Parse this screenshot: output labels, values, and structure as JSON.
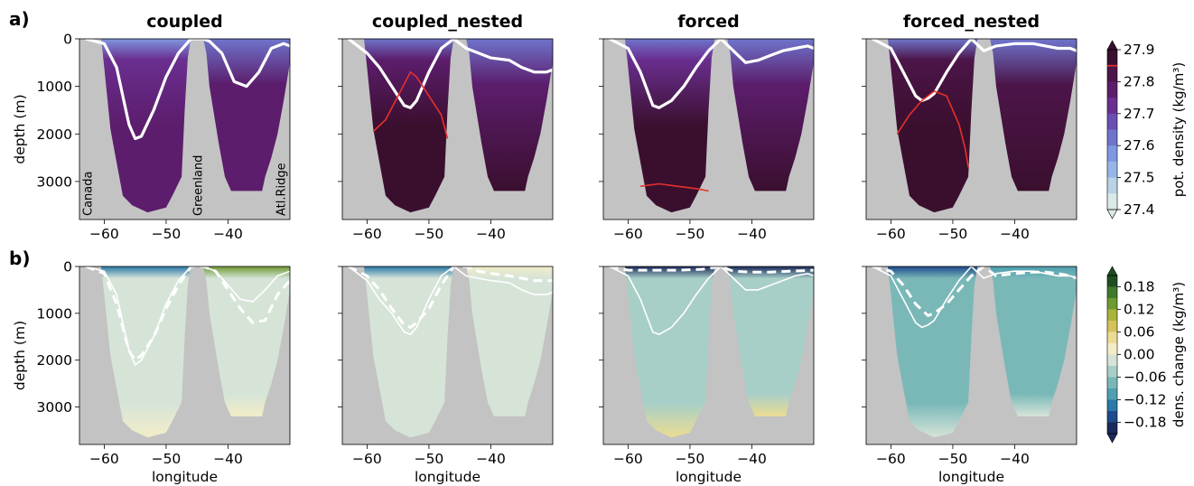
{
  "panel_labels": [
    "a)",
    "b)"
  ],
  "chart_data": [
    {
      "type": "heatmap",
      "row": "a",
      "titles": [
        "coupled",
        "coupled_nested",
        "forced",
        "forced_nested"
      ],
      "xlabel": "",
      "ylabel": "depth (m)",
      "xlim": [
        -64,
        -30
      ],
      "ylim": [
        3800,
        0
      ],
      "xticks": [
        -60,
        -50,
        -40
      ],
      "xtick_labels": [
        "−60",
        "−50",
        "−40"
      ],
      "yticks": [
        0,
        1000,
        2000,
        3000
      ],
      "land_labels": [
        "Canada",
        "Greenland",
        "Atl.Ridge"
      ],
      "colorbar": {
        "label": "pot. density (kg/m³)",
        "min": 27.4,
        "max": 27.9,
        "ticks": [
          "27.4",
          "27.5",
          "27.6",
          "27.7",
          "27.8",
          "27.9"
        ],
        "colors": [
          "#dbe9e7",
          "#b9d3e4",
          "#97b6e8",
          "#7f97e0",
          "#6e74cb",
          "#6a4fb2",
          "#6a2e8f",
          "#5c1d6c",
          "#4c1549",
          "#3a0f2e"
        ],
        "marked_level": 27.85,
        "marked_color": "#e8302a",
        "extend": "both"
      },
      "panels": [
        {
          "title": "coupled",
          "west_basin": [
            [
              -63,
              0,
              27.56
            ],
            [
              -63,
              500,
              27.72
            ],
            [
              -56,
              2000,
              27.78
            ],
            [
              -51,
              3600,
              27.79
            ]
          ],
          "east_basin": [
            [
              -42,
              0,
              27.6
            ],
            [
              -35,
              1500,
              27.76
            ],
            [
              -33,
              3100,
              27.78
            ]
          ],
          "mld_line": {
            "x": [
              -63,
              -60,
              -58,
              -56,
              -55,
              -54,
              -52,
              -50,
              -48,
              -46,
              -44,
              -43,
              -41,
              -39,
              -37,
              -35,
              -33,
              -31,
              -30
            ],
            "y": [
              0,
              100,
              600,
              1800,
              2100,
              2050,
              1500,
              800,
              300,
              0,
              0,
              50,
              300,
              900,
              1000,
              700,
              200,
              100,
              150
            ]
          },
          "red_contour": null
        },
        {
          "title": "coupled_nested",
          "west_basin": [
            [
              -60,
              0,
              27.6
            ],
            [
              -57,
              700,
              27.78
            ],
            [
              -53,
              2500,
              27.9
            ]
          ],
          "east_basin": [
            [
              -42,
              0,
              27.6
            ],
            [
              -38,
              1000,
              27.78
            ],
            [
              -35,
              3100,
              27.89
            ]
          ],
          "mld_line": {
            "x": [
              -63,
              -60,
              -58,
              -56,
              -54,
              -53,
              -52,
              -50,
              -48,
              -46,
              -44,
              -42,
              -40,
              -37,
              -35,
              -33,
              -31,
              -30
            ],
            "y": [
              0,
              300,
              600,
              1000,
              1400,
              1450,
              1300,
              700,
              200,
              0,
              200,
              300,
              400,
              450,
              600,
              700,
              700,
              650
            ]
          },
          "red_contour": {
            "x": [
              -59,
              -57,
              -55,
              -53,
              -52,
              -50,
              -48,
              -47
            ],
            "y": [
              1950,
              1700,
              1200,
              700,
              800,
              1200,
              1600,
              2100
            ]
          }
        },
        {
          "title": "forced",
          "west_basin": [
            [
              -63,
              0,
              27.6
            ],
            [
              -58,
              1000,
              27.74
            ],
            [
              -52,
              3300,
              27.85
            ]
          ],
          "east_basin": [
            [
              -42,
              0,
              27.6
            ],
            [
              -36,
              1600,
              27.77
            ],
            [
              -35,
              3000,
              27.86
            ]
          ],
          "mld_line": {
            "x": [
              -63,
              -60,
              -58,
              -56,
              -55,
              -53,
              -51,
              -49,
              -47,
              -45,
              -43,
              -41,
              -39,
              -37,
              -35,
              -33,
              -31,
              -30
            ],
            "y": [
              0,
              200,
              700,
              1400,
              1450,
              1300,
              1000,
              600,
              250,
              0,
              250,
              500,
              450,
              350,
              250,
              200,
              150,
              200
            ]
          },
          "red_contour": {
            "x": [
              -58,
              -55,
              -52,
              -49,
              -47
            ],
            "y": [
              3100,
              3050,
              3100,
              3150,
              3200
            ]
          }
        },
        {
          "title": "forced_nested",
          "west_basin": [
            [
              -59,
              0,
              27.62
            ],
            [
              -55,
              900,
              27.8
            ],
            [
              -52,
              2400,
              27.9
            ]
          ],
          "east_basin": [
            [
              -42,
              0,
              27.62
            ],
            [
              -37,
              1300,
              27.8
            ],
            [
              -35,
              2800,
              27.89
            ]
          ],
          "mld_line": {
            "x": [
              -63,
              -60,
              -58,
              -56,
              -55,
              -54,
              -53,
              -51,
              -49,
              -47,
              -45,
              -43,
              -40,
              -37,
              -35,
              -33,
              -31,
              -30
            ],
            "y": [
              0,
              200,
              700,
              1200,
              1300,
              1250,
              1150,
              700,
              300,
              0,
              250,
              150,
              100,
              100,
              150,
              200,
              200,
              250
            ]
          },
          "red_contour": {
            "x": [
              -59,
              -57,
              -55,
              -53,
              -51,
              -49,
              -48,
              -47.5
            ],
            "y": [
              2000,
              1600,
              1300,
              1100,
              1200,
              1800,
              2300,
              2700
            ]
          }
        }
      ]
    },
    {
      "type": "heatmap",
      "row": "b",
      "titles": [],
      "xlabel": "longitude",
      "ylabel": "depth (m)",
      "xlim": [
        -64,
        -30
      ],
      "ylim": [
        3800,
        0
      ],
      "xticks": [
        -60,
        -50,
        -40
      ],
      "xtick_labels": [
        "−60",
        "−50",
        "−40"
      ],
      "yticks": [
        0,
        1000,
        2000,
        3000
      ],
      "colorbar": {
        "label": "dens. change (kg/m³)",
        "min": -0.21,
        "max": 0.21,
        "ticks": [
          "−0.18",
          "−0.12",
          "−0.06",
          "0.00",
          "0.06",
          "0.12",
          "0.18"
        ],
        "tick_values": [
          -0.18,
          -0.12,
          -0.06,
          0.0,
          0.06,
          0.12,
          0.18
        ],
        "colors": [
          "#1a2a5c",
          "#1d4a8c",
          "#2a79a8",
          "#4f9fb0",
          "#7ab8b8",
          "#a7cfc7",
          "#d6e4d8",
          "#f2edc7",
          "#ecdc93",
          "#d4c35a",
          "#a9b43c",
          "#6e9a32",
          "#3f7a2c",
          "#1f4e22"
        ],
        "extend": "both"
      },
      "panels": [
        {
          "interior_change": -0.02,
          "bottom_change": 0.01,
          "surface_change_west": -0.15,
          "surface_change_east": 0.12,
          "solid_line": {
            "x": [
              -63,
              -60,
              -58,
              -56,
              -55,
              -54,
              -52,
              -50,
              -48,
              -46,
              -44,
              -42,
              -40,
              -38,
              -36,
              -34,
              -32,
              -30
            ],
            "y": [
              0,
              100,
              600,
              1800,
              2100,
              2000,
              1500,
              800,
              300,
              0,
              0,
              100,
              400,
              700,
              750,
              500,
              200,
              100
            ]
          },
          "dashed_line": {
            "x": [
              -63,
              -60,
              -58,
              -56,
              -55,
              -54,
              -52,
              -50,
              -48,
              -46,
              -44,
              -42,
              -40,
              -38,
              -36,
              -34,
              -32,
              -30
            ],
            "y": [
              0,
              150,
              800,
              1800,
              2000,
              1900,
              1500,
              900,
              400,
              0,
              0,
              100,
              500,
              900,
              1200,
              1150,
              600,
              300
            ]
          }
        },
        {
          "interior_change": -0.03,
          "bottom_change": -0.02,
          "surface_change_west": -0.14,
          "surface_change_east": 0.02,
          "solid_line": {
            "x": [
              -63,
              -60,
              -58,
              -56,
              -54,
              -53,
              -52,
              -50,
              -48,
              -46,
              -44,
              -42,
              -40,
              -37,
              -35,
              -33,
              -31,
              -30
            ],
            "y": [
              0,
              300,
              700,
              1000,
              1400,
              1450,
              1300,
              700,
              200,
              0,
              200,
              250,
              300,
              350,
              500,
              600,
              600,
              550
            ]
          },
          "dashed_line": {
            "x": [
              -63,
              -60,
              -58,
              -56,
              -54,
              -53,
              -52,
              -50,
              -48,
              -46,
              -44,
              -42,
              -40,
              -37,
              -35,
              -33,
              -31,
              -30
            ],
            "y": [
              0,
              200,
              500,
              900,
              1250,
              1300,
              1200,
              900,
              400,
              0,
              0,
              100,
              150,
              200,
              250,
              300,
              300,
              300
            ]
          }
        },
        {
          "interior_change": -0.06,
          "bottom_change": 0.05,
          "surface_change_west": -0.2,
          "surface_change_east": -0.2,
          "solid_line": {
            "x": [
              -63,
              -60,
              -58,
              -56,
              -55,
              -53,
              -51,
              -49,
              -47,
              -45,
              -43,
              -41,
              -39,
              -37,
              -35,
              -33,
              -31,
              -30
            ],
            "y": [
              0,
              200,
              700,
              1400,
              1450,
              1300,
              1000,
              600,
              250,
              0,
              250,
              500,
              500,
              400,
              300,
              200,
              150,
              200
            ]
          },
          "dashed_line": {
            "x": [
              -63,
              -60,
              -56,
              -52,
              -48,
              -45,
              -43,
              -40,
              -37,
              -34,
              -32,
              -30
            ],
            "y": [
              0,
              80,
              80,
              80,
              60,
              0,
              100,
              120,
              120,
              100,
              90,
              80
            ]
          }
        },
        {
          "interior_change": -0.08,
          "bottom_change": -0.02,
          "surface_change_west": -0.17,
          "surface_change_east": -0.12,
          "solid_line": {
            "x": [
              -63,
              -60,
              -58,
              -56,
              -55,
              -54,
              -53,
              -51,
              -49,
              -47,
              -45,
              -43,
              -40,
              -37,
              -35,
              -33,
              -31,
              -30
            ],
            "y": [
              0,
              200,
              700,
              1200,
              1300,
              1250,
              1150,
              700,
              300,
              0,
              250,
              150,
              100,
              100,
              150,
              200,
              200,
              250
            ]
          },
          "dashed_line": {
            "x": [
              -63,
              -60,
              -58,
              -56,
              -54,
              -53,
              -51,
              -49,
              -47,
              -45,
              -43,
              -40,
              -37,
              -35,
              -33,
              -31,
              -30
            ],
            "y": [
              0,
              100,
              400,
              800,
              1050,
              1000,
              800,
              500,
              200,
              0,
              200,
              150,
              120,
              120,
              150,
              200,
              250
            ]
          }
        }
      ]
    }
  ]
}
